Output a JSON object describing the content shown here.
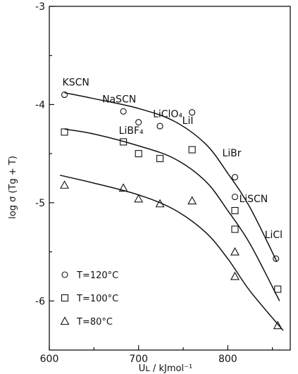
{
  "chart_data": {
    "type": "scatter",
    "xlabel": "Uʟ / kJmol⁻¹",
    "ylabel": "log σ (Tg + T)",
    "xlim": [
      600,
      870
    ],
    "ylim": [
      -6.5,
      -3
    ],
    "xticks": [
      600,
      700,
      800
    ],
    "yticks": [
      -3,
      -4,
      -5,
      -6
    ],
    "xtick_labels": [
      "600",
      "700",
      "800"
    ],
    "ytick_labels": [
      "-3",
      "-4",
      "-5",
      "-6"
    ],
    "grid": false,
    "legend_position": "bottom-left",
    "series": [
      {
        "name": "T=120°C",
        "marker": "circle",
        "points": [
          [
            617,
            -3.9
          ],
          [
            683,
            -4.07
          ],
          [
            700,
            -4.18
          ],
          [
            724,
            -4.22
          ],
          [
            760,
            -4.08
          ],
          [
            808,
            -4.74
          ],
          [
            808,
            -4.94
          ],
          [
            854,
            -5.57
          ]
        ],
        "curve": [
          [
            617,
            -3.88
          ],
          [
            650,
            -3.94
          ],
          [
            700,
            -4.04
          ],
          [
            740,
            -4.17
          ],
          [
            775,
            -4.4
          ],
          [
            800,
            -4.7
          ],
          [
            825,
            -5.05
          ],
          [
            855,
            -5.6
          ]
        ]
      },
      {
        "name": "T=100°C",
        "marker": "square",
        "points": [
          [
            617,
            -4.28
          ],
          [
            683,
            -4.38
          ],
          [
            700,
            -4.5
          ],
          [
            724,
            -4.55
          ],
          [
            760,
            -4.46
          ],
          [
            808,
            -5.08
          ],
          [
            808,
            -5.27
          ],
          [
            856,
            -5.88
          ]
        ],
        "curve": [
          [
            617,
            -4.25
          ],
          [
            650,
            -4.3
          ],
          [
            700,
            -4.42
          ],
          [
            740,
            -4.55
          ],
          [
            775,
            -4.78
          ],
          [
            800,
            -5.08
          ],
          [
            825,
            -5.42
          ],
          [
            858,
            -6.0
          ]
        ]
      },
      {
        "name": "T=80°C",
        "marker": "triangle",
        "points": [
          [
            617,
            -4.82
          ],
          [
            683,
            -4.85
          ],
          [
            700,
            -4.96
          ],
          [
            724,
            -5.01
          ],
          [
            760,
            -4.98
          ],
          [
            808,
            -5.5
          ],
          [
            808,
            -5.75
          ],
          [
            856,
            -6.25
          ]
        ],
        "curve": [
          [
            612,
            -4.72
          ],
          [
            650,
            -4.8
          ],
          [
            700,
            -4.92
          ],
          [
            740,
            -5.07
          ],
          [
            775,
            -5.3
          ],
          [
            800,
            -5.57
          ],
          [
            825,
            -5.9
          ],
          [
            862,
            -6.3
          ]
        ]
      }
    ],
    "annotations": [
      {
        "text": "KSCN",
        "x": 617,
        "y": -3.88
      },
      {
        "text": "NaSCN",
        "x": 683,
        "y": -4.05
      },
      {
        "text": "LiClO₄",
        "x": 724,
        "y": -4.2
      },
      {
        "text": "LiBF₄",
        "x": 700,
        "y": -4.37
      },
      {
        "text": "LiI",
        "x": 760,
        "y": -4.27
      },
      {
        "text": "LiBr",
        "x": 808,
        "y": -4.6
      },
      {
        "text": "LiSCN",
        "x": 808,
        "y": -4.98
      },
      {
        "text": "LiCl",
        "x": 854,
        "y": -5.43
      }
    ]
  }
}
